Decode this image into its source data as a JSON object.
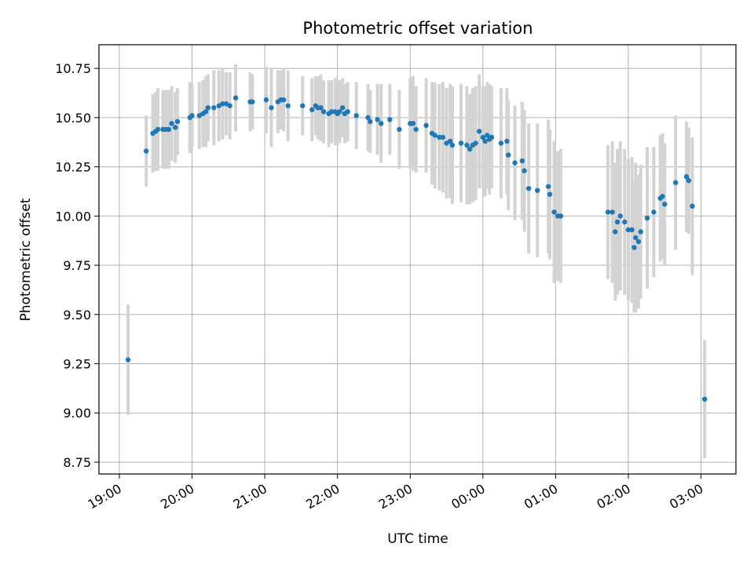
{
  "chart_data": {
    "type": "scatter",
    "title": "Photometric offset variation",
    "xlabel": "UTC time",
    "ylabel": "Photometric offset",
    "x_unit": "hours since 19:00 UTC",
    "xlim": [
      -0.28,
      8.48
    ],
    "ylim": [
      8.69,
      10.87
    ],
    "x_ticks": [
      0,
      1,
      2,
      3,
      4,
      5,
      6,
      7,
      8
    ],
    "x_tick_labels": [
      "19:00",
      "20:00",
      "21:00",
      "22:00",
      "23:00",
      "00:00",
      "01:00",
      "02:00",
      "03:00"
    ],
    "y_ticks": [
      8.75,
      9.0,
      9.25,
      9.5,
      9.75,
      10.0,
      10.25,
      10.5,
      10.75
    ],
    "y_tick_labels": [
      "8.75",
      "9.00",
      "9.25",
      "9.50",
      "9.75",
      "10.00",
      "10.25",
      "10.50",
      "10.75"
    ],
    "grid": true,
    "colors": {
      "point": "#1f77b4",
      "errorbar": "#d3d3d3",
      "grid": "#b0b0b0"
    },
    "points": [
      [
        0.12,
        9.27,
        0.28
      ],
      [
        0.37,
        10.33,
        0.18
      ],
      [
        0.46,
        10.42,
        0.2
      ],
      [
        0.5,
        10.43,
        0.2
      ],
      [
        0.53,
        10.44,
        0.21
      ],
      [
        0.6,
        10.44,
        0.2
      ],
      [
        0.64,
        10.44,
        0.2
      ],
      [
        0.68,
        10.44,
        0.2
      ],
      [
        0.72,
        10.47,
        0.19
      ],
      [
        0.77,
        10.45,
        0.18
      ],
      [
        0.8,
        10.48,
        0.17
      ],
      [
        0.97,
        10.5,
        0.18
      ],
      [
        1.0,
        10.51,
        0.16
      ],
      [
        1.1,
        10.51,
        0.17
      ],
      [
        1.15,
        10.52,
        0.17
      ],
      [
        1.19,
        10.53,
        0.18
      ],
      [
        1.22,
        10.55,
        0.17
      ],
      [
        1.3,
        10.55,
        0.19
      ],
      [
        1.37,
        10.56,
        0.18
      ],
      [
        1.42,
        10.57,
        0.18
      ],
      [
        1.47,
        10.57,
        0.16
      ],
      [
        1.52,
        10.56,
        0.17
      ],
      [
        1.6,
        10.6,
        0.17
      ],
      [
        1.8,
        10.58,
        0.15
      ],
      [
        1.83,
        10.58,
        0.14
      ],
      [
        2.02,
        10.59,
        0.17
      ],
      [
        2.09,
        10.55,
        0.2
      ],
      [
        2.18,
        10.58,
        0.16
      ],
      [
        2.22,
        10.59,
        0.15
      ],
      [
        2.26,
        10.59,
        0.16
      ],
      [
        2.32,
        10.56,
        0.18
      ],
      [
        2.52,
        10.56,
        0.15
      ],
      [
        2.65,
        10.54,
        0.16
      ],
      [
        2.7,
        10.56,
        0.15
      ],
      [
        2.73,
        10.55,
        0.16
      ],
      [
        2.77,
        10.55,
        0.17
      ],
      [
        2.81,
        10.53,
        0.16
      ],
      [
        2.88,
        10.52,
        0.17
      ],
      [
        2.92,
        10.53,
        0.16
      ],
      [
        2.97,
        10.53,
        0.17
      ],
      [
        3.0,
        10.52,
        0.16
      ],
      [
        3.03,
        10.53,
        0.16
      ],
      [
        3.07,
        10.55,
        0.15
      ],
      [
        3.1,
        10.52,
        0.15
      ],
      [
        3.14,
        10.53,
        0.15
      ],
      [
        3.26,
        10.51,
        0.17
      ],
      [
        3.42,
        10.5,
        0.17
      ],
      [
        3.45,
        10.48,
        0.16
      ],
      [
        3.55,
        10.49,
        0.18
      ],
      [
        3.6,
        10.47,
        0.2
      ],
      [
        3.72,
        10.49,
        0.18
      ],
      [
        3.85,
        10.44,
        0.2
      ],
      [
        4.0,
        10.47,
        0.23
      ],
      [
        4.04,
        10.47,
        0.24
      ],
      [
        4.08,
        10.44,
        0.22
      ],
      [
        4.22,
        10.46,
        0.24
      ],
      [
        4.3,
        10.42,
        0.26
      ],
      [
        4.34,
        10.41,
        0.27
      ],
      [
        4.4,
        10.4,
        0.27
      ],
      [
        4.45,
        10.4,
        0.28
      ],
      [
        4.5,
        10.37,
        0.28
      ],
      [
        4.55,
        10.38,
        0.29
      ],
      [
        4.58,
        10.36,
        0.3
      ],
      [
        4.7,
        10.37,
        0.3
      ],
      [
        4.78,
        10.36,
        0.3
      ],
      [
        4.82,
        10.34,
        0.28
      ],
      [
        4.86,
        10.36,
        0.29
      ],
      [
        4.9,
        10.37,
        0.29
      ],
      [
        4.95,
        10.43,
        0.29
      ],
      [
        5.0,
        10.4,
        0.26
      ],
      [
        5.03,
        10.38,
        0.28
      ],
      [
        5.06,
        10.41,
        0.27
      ],
      [
        5.09,
        10.39,
        0.28
      ],
      [
        5.12,
        10.4,
        0.26
      ],
      [
        5.25,
        10.37,
        0.28
      ],
      [
        5.33,
        10.38,
        0.27
      ],
      [
        5.35,
        10.31,
        0.28
      ],
      [
        5.44,
        10.27,
        0.29
      ],
      [
        5.54,
        10.28,
        0.3
      ],
      [
        5.57,
        10.23,
        0.31
      ],
      [
        5.63,
        10.14,
        0.33
      ],
      [
        5.75,
        10.13,
        0.34
      ],
      [
        5.9,
        10.15,
        0.34
      ],
      [
        5.92,
        10.11,
        0.33
      ],
      [
        5.98,
        10.02,
        0.36
      ],
      [
        6.03,
        10.0,
        0.33
      ],
      [
        6.07,
        10.0,
        0.34
      ],
      [
        6.72,
        10.02,
        0.34
      ],
      [
        6.78,
        10.02,
        0.36
      ],
      [
        6.82,
        9.92,
        0.35
      ],
      [
        6.85,
        9.97,
        0.37
      ],
      [
        6.89,
        10.0,
        0.38
      ],
      [
        6.95,
        9.97,
        0.37
      ],
      [
        7.0,
        9.93,
        0.36
      ],
      [
        7.05,
        9.93,
        0.37
      ],
      [
        7.1,
        9.89,
        0.38
      ],
      [
        7.08,
        9.84,
        0.33
      ],
      [
        7.14,
        9.87,
        0.34
      ],
      [
        7.17,
        9.92,
        0.34
      ],
      [
        7.26,
        9.99,
        0.36
      ],
      [
        7.35,
        10.02,
        0.33
      ],
      [
        7.44,
        10.09,
        0.32
      ],
      [
        7.47,
        10.1,
        0.32
      ],
      [
        7.5,
        10.06,
        0.31
      ],
      [
        7.65,
        10.17,
        0.34
      ],
      [
        7.8,
        10.2,
        0.28
      ],
      [
        7.83,
        10.18,
        0.27
      ],
      [
        7.88,
        10.05,
        0.35
      ],
      [
        8.05,
        9.07,
        0.3
      ]
    ]
  }
}
